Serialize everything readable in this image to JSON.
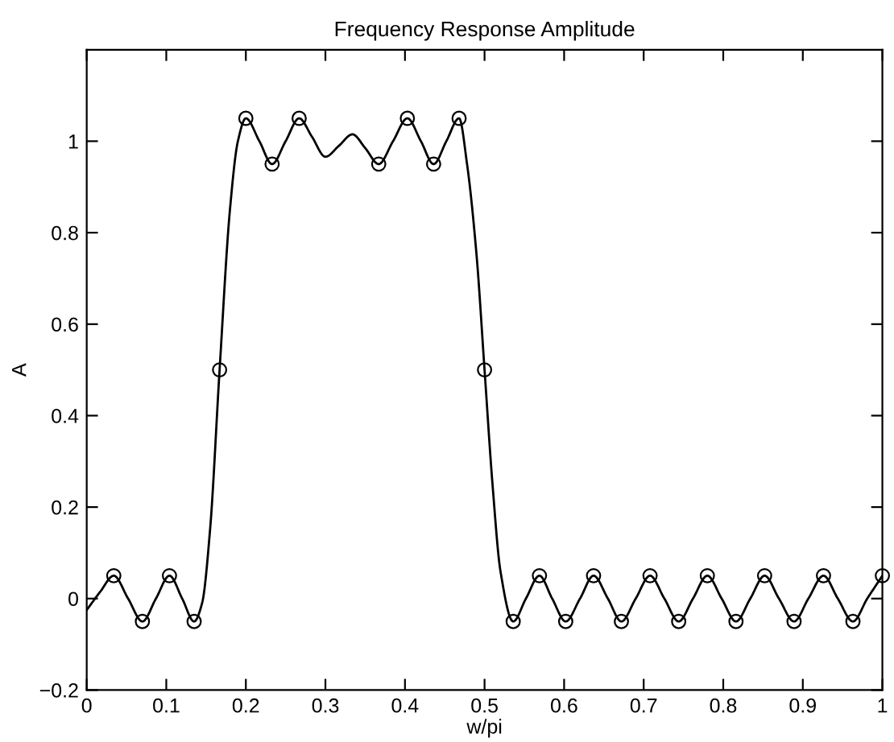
{
  "chart_data": {
    "type": "line",
    "title": "Frequency Response Amplitude",
    "xlabel": "w/pi",
    "ylabel": "A",
    "xlim": [
      0,
      1
    ],
    "ylim": [
      -0.2,
      1.2
    ],
    "xticks": [
      0,
      0.1,
      0.2,
      0.3,
      0.4,
      0.5,
      0.6,
      0.7,
      0.8,
      0.9,
      1
    ],
    "yticks": [
      {
        "value": -0.2,
        "label": "−0.2"
      },
      0,
      0.2,
      0.4,
      0.6,
      0.8,
      1
    ],
    "grid": false,
    "legend": false,
    "series": [
      {
        "color": "#000000",
        "marker": "none",
        "line_style": "solid",
        "x": [
          0,
          0.017,
          0.034,
          0.052,
          0.07,
          0.087,
          0.104,
          0.12,
          0.135,
          0.145,
          0.155,
          0.167,
          0.18,
          0.19,
          0.2,
          0.217,
          0.233,
          0.25,
          0.267,
          0.283,
          0.3,
          0.317,
          0.334,
          0.35,
          0.367,
          0.385,
          0.403,
          0.42,
          0.436,
          0.452,
          0.468,
          0.478,
          0.49,
          0.5,
          0.51,
          0.52,
          0.536,
          0.552,
          0.569,
          0.585,
          0.602,
          0.62,
          0.637,
          0.655,
          0.672,
          0.69,
          0.708,
          0.726,
          0.744,
          0.762,
          0.78,
          0.798,
          0.816,
          0.834,
          0.852,
          0.87,
          0.889,
          0.907,
          0.926,
          0.944,
          0.963,
          0.981,
          1
        ],
        "values": [
          -0.025,
          0.015,
          0.05,
          0,
          -0.05,
          0,
          0.05,
          0,
          -0.05,
          -0.01,
          0.15,
          0.5,
          0.85,
          1.0,
          1.05,
          1.0,
          0.95,
          1.0,
          1.05,
          1.01,
          0.966,
          0.99,
          1.015,
          0.985,
          0.95,
          1.0,
          1.05,
          1.0,
          0.95,
          1.0,
          1.05,
          0.95,
          0.75,
          0.5,
          0.25,
          0.06,
          -0.05,
          0,
          0.05,
          0,
          -0.05,
          0,
          0.05,
          0,
          -0.05,
          0,
          0.05,
          0,
          -0.05,
          0,
          0.05,
          0,
          -0.05,
          0,
          0.05,
          0,
          -0.05,
          0,
          0.05,
          0,
          -0.05,
          0,
          0.05
        ]
      },
      {
        "type": "scatter",
        "color": "#000000",
        "marker": "circle",
        "x": [
          0.034,
          0.07,
          0.104,
          0.135,
          0.167,
          0.2,
          0.233,
          0.267,
          0.367,
          0.403,
          0.436,
          0.468,
          0.5,
          0.536,
          0.569,
          0.602,
          0.637,
          0.672,
          0.708,
          0.744,
          0.78,
          0.816,
          0.852,
          0.889,
          0.926,
          0.963,
          1
        ],
        "values": [
          0.05,
          -0.05,
          0.05,
          -0.05,
          0.5,
          1.05,
          0.95,
          1.05,
          0.95,
          1.05,
          0.95,
          1.05,
          0.5,
          -0.05,
          0.05,
          -0.05,
          0.05,
          -0.05,
          0.05,
          -0.05,
          0.05,
          -0.05,
          0.05,
          -0.05,
          0.05,
          -0.05,
          0.05
        ]
      }
    ]
  }
}
